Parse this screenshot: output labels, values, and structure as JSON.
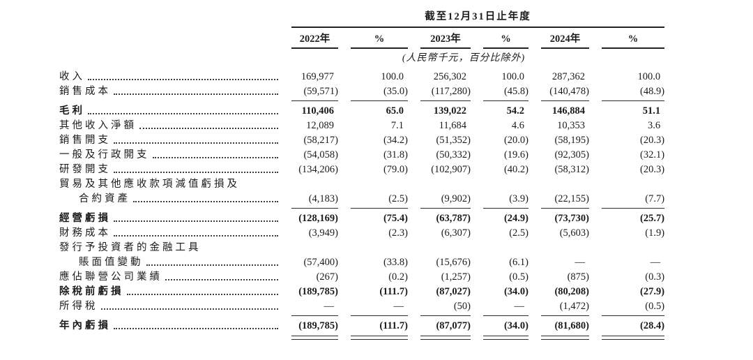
{
  "header": {
    "period_title": "截至12月31日止年度",
    "column_headers": [
      "2022年",
      "%",
      "2023年",
      "%",
      "2024年",
      "%"
    ],
    "unit_note": "(人民幣千元，百分比除外)"
  },
  "table": {
    "rows": [
      {
        "label": "收入",
        "bold": false,
        "indent": false,
        "leader_dots": true,
        "rule_below": "none",
        "values": [
          "169,977",
          "100.0",
          "256,302",
          "100.0",
          "287,362",
          "100.0"
        ]
      },
      {
        "label": "銷售成本",
        "bold": false,
        "indent": false,
        "leader_dots": true,
        "rule_below": "single",
        "values": [
          "(59,571)",
          "(35.0)",
          "(117,280)",
          "(45.8)",
          "(140,478)",
          "(48.9)"
        ]
      },
      {
        "label": "毛利",
        "bold": true,
        "indent": false,
        "leader_dots": true,
        "rule_below": "none",
        "values": [
          "110,406",
          "65.0",
          "139,022",
          "54.2",
          "146,884",
          "51.1"
        ]
      },
      {
        "label": "其他收入淨額",
        "bold": false,
        "indent": false,
        "leader_dots": true,
        "rule_below": "none",
        "values": [
          "12,089",
          "7.1",
          "11,684",
          "4.6",
          "10,353",
          "3.6"
        ]
      },
      {
        "label": "銷售開支",
        "bold": false,
        "indent": false,
        "leader_dots": true,
        "rule_below": "none",
        "values": [
          "(58,217)",
          "(34.2)",
          "(51,352)",
          "(20.0)",
          "(58,195)",
          "(20.3)"
        ]
      },
      {
        "label": "一般及行政開支",
        "bold": false,
        "indent": false,
        "leader_dots": true,
        "rule_below": "none",
        "values": [
          "(54,058)",
          "(31.8)",
          "(50,332)",
          "(19.6)",
          "(92,305)",
          "(32.1)"
        ]
      },
      {
        "label": "研發開支",
        "bold": false,
        "indent": false,
        "leader_dots": true,
        "rule_below": "none",
        "values": [
          "(134,206)",
          "(79.0)",
          "(102,907)",
          "(40.2)",
          "(58,312)",
          "(20.3)"
        ]
      },
      {
        "label": "貿易及其他應收款項減值虧損及",
        "bold": false,
        "indent": false,
        "leader_dots": false,
        "rule_below": "none",
        "values": null
      },
      {
        "label": "合約資產",
        "bold": false,
        "indent": true,
        "leader_dots": true,
        "rule_below": "single",
        "values": [
          "(4,183)",
          "(2.5)",
          "(9,902)",
          "(3.9)",
          "(22,155)",
          "(7.7)"
        ]
      },
      {
        "label": "經營虧損",
        "bold": true,
        "indent": false,
        "leader_dots": true,
        "rule_below": "none",
        "values": [
          "(128,169)",
          "(75.4)",
          "(63,787)",
          "(24.9)",
          "(73,730)",
          "(25.7)"
        ]
      },
      {
        "label": "財務成本",
        "bold": false,
        "indent": false,
        "leader_dots": true,
        "rule_below": "none",
        "values": [
          "(3,949)",
          "(2.3)",
          "(6,307)",
          "(2.5)",
          "(5,603)",
          "(1.9)"
        ]
      },
      {
        "label": "發行予投資者的金融工具",
        "bold": false,
        "indent": false,
        "leader_dots": false,
        "rule_below": "none",
        "values": null
      },
      {
        "label": "賬面值變動",
        "bold": false,
        "indent": true,
        "leader_dots": true,
        "rule_below": "none",
        "values": [
          "(57,400)",
          "(33.8)",
          "(15,676)",
          "(6.1)",
          "—",
          "—"
        ]
      },
      {
        "label": "應佔聯營公司業績",
        "bold": false,
        "indent": false,
        "leader_dots": true,
        "rule_below": "none",
        "values": [
          "(267)",
          "(0.2)",
          "(1,257)",
          "(0.5)",
          "(875)",
          "(0.3)"
        ]
      },
      {
        "label": "除稅前虧損",
        "bold": true,
        "indent": false,
        "leader_dots": true,
        "rule_below": "none",
        "values": [
          "(189,785)",
          "(111.7)",
          "(87,027)",
          "(34.0)",
          "(80,208)",
          "(27.9)"
        ]
      },
      {
        "label": "所得稅",
        "bold": false,
        "indent": false,
        "leader_dots": true,
        "rule_below": "single",
        "values": [
          "—",
          "—",
          "(50)",
          "—",
          "(1,472)",
          "(0.5)"
        ]
      },
      {
        "label": "年內虧損",
        "bold": true,
        "indent": false,
        "leader_dots": true,
        "rule_below": "double",
        "values": [
          "(189,785)",
          "(111.7)",
          "(87,077)",
          "(34.0)",
          "(81,680)",
          "(28.4)"
        ]
      }
    ]
  }
}
